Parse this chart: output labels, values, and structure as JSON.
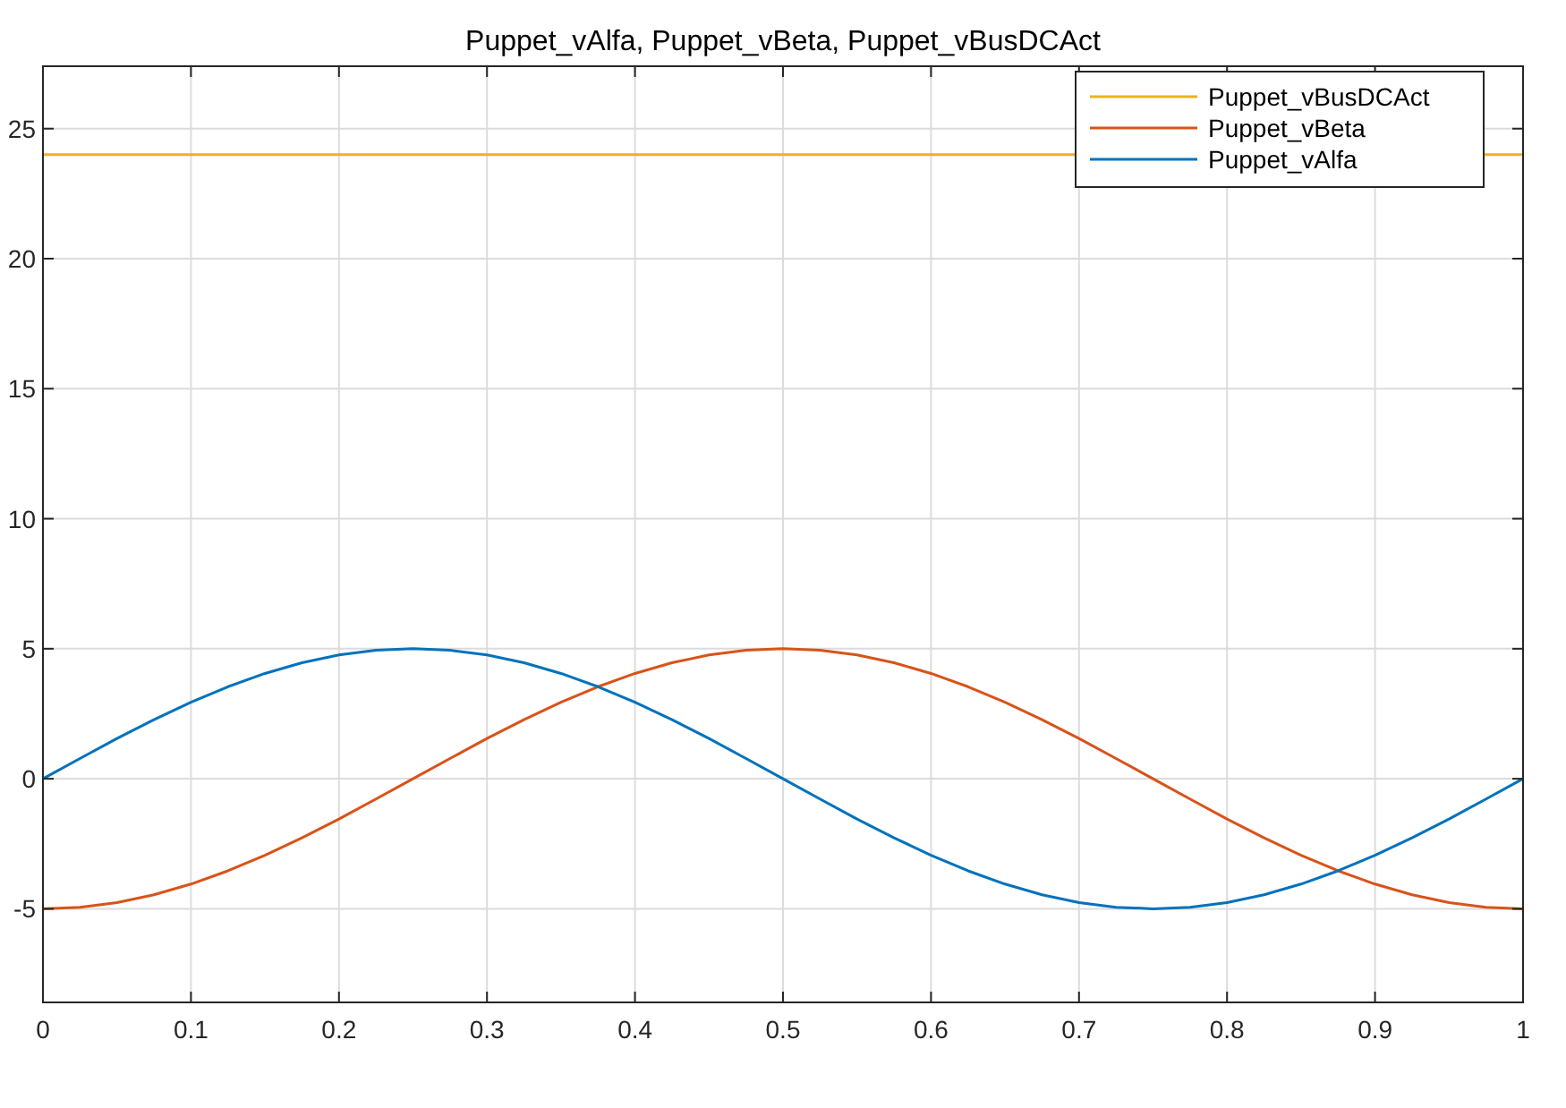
{
  "chart_data": {
    "type": "line",
    "title": "Puppet_vAlfa, Puppet_vBeta, Puppet_vBusDCAct",
    "xlim": [
      0,
      1
    ],
    "ylim": [
      -8.6,
      27.4
    ],
    "xticks": [
      0,
      0.1,
      0.2,
      0.3,
      0.4,
      0.5,
      0.6,
      0.7,
      0.8,
      0.9,
      1
    ],
    "yticks": [
      -5,
      0,
      5,
      10,
      15,
      20,
      25
    ],
    "grid": true,
    "legend": "top right",
    "line_style": "solid",
    "marker": "none",
    "x": [
      0,
      0.025,
      0.05,
      0.075,
      0.1,
      0.125,
      0.15,
      0.175,
      0.2,
      0.225,
      0.25,
      0.275,
      0.3,
      0.325,
      0.35,
      0.375,
      0.4,
      0.425,
      0.45,
      0.475,
      0.5,
      0.525,
      0.55,
      0.575,
      0.6,
      0.625,
      0.65,
      0.675,
      0.7,
      0.725,
      0.75,
      0.775,
      0.8,
      0.825,
      0.85,
      0.875,
      0.9,
      0.925,
      0.95,
      0.975,
      1
    ],
    "series": [
      {
        "name": "Puppet_vBusDCAct",
        "color": "#edb120",
        "x": [
          0,
          1
        ],
        "values": [
          24,
          24
        ]
      },
      {
        "name": "Puppet_vBeta",
        "color": "#d95319",
        "values": [
          -5,
          -4.94,
          -4.76,
          -4.46,
          -4.05,
          -3.54,
          -2.94,
          -2.27,
          -1.55,
          -0.78,
          0,
          0.78,
          1.55,
          2.27,
          2.94,
          3.54,
          4.05,
          4.46,
          4.76,
          4.94,
          5,
          4.94,
          4.76,
          4.46,
          4.05,
          3.54,
          2.94,
          2.27,
          1.55,
          0.78,
          0,
          -0.78,
          -1.55,
          -2.27,
          -2.94,
          -3.54,
          -4.05,
          -4.46,
          -4.76,
          -4.94,
          -5
        ]
      },
      {
        "name": "Puppet_vAlfa",
        "color": "#0072bd",
        "values": [
          0,
          0.78,
          1.55,
          2.27,
          2.94,
          3.54,
          4.05,
          4.46,
          4.76,
          4.94,
          5,
          4.94,
          4.76,
          4.46,
          4.05,
          3.54,
          2.94,
          2.27,
          1.55,
          0.78,
          0,
          -0.78,
          -1.55,
          -2.27,
          -2.94,
          -3.54,
          -4.05,
          -4.46,
          -4.76,
          -4.94,
          -5,
          -4.94,
          -4.76,
          -4.46,
          -4.05,
          -3.54,
          -2.94,
          -2.27,
          -1.55,
          -0.78,
          0
        ]
      }
    ]
  }
}
